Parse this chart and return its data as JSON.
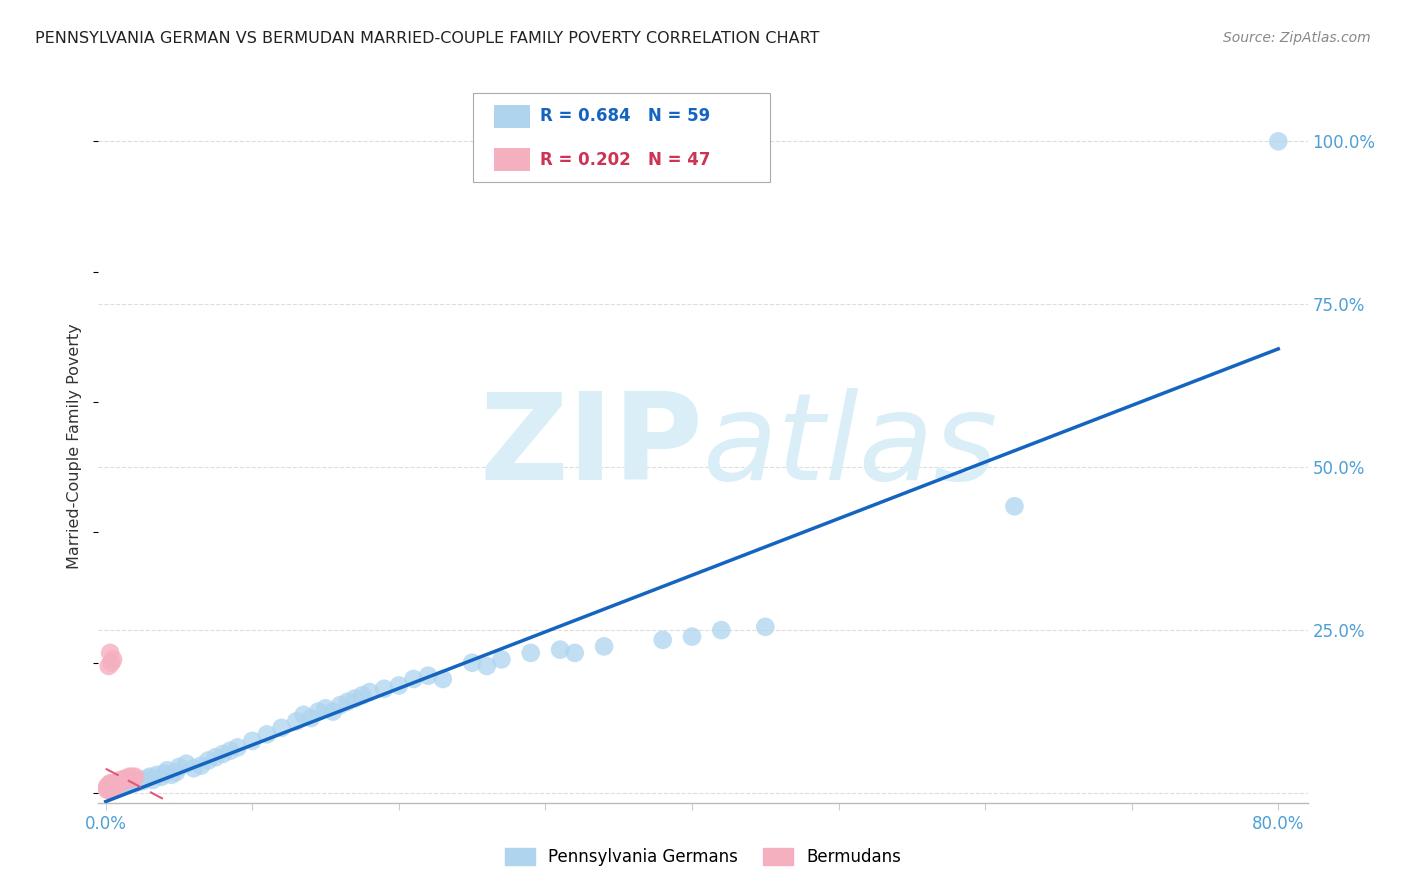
{
  "title": "PENNSYLVANIA GERMAN VS BERMUDAN MARRIED-COUPLE FAMILY POVERTY CORRELATION CHART",
  "source": "Source: ZipAtlas.com",
  "ylabel": "Married-Couple Family Poverty",
  "xlim": [
    -0.005,
    0.82
  ],
  "ylim": [
    -0.015,
    1.08
  ],
  "xticks": [
    0.0,
    0.1,
    0.2,
    0.3,
    0.4,
    0.5,
    0.6,
    0.7,
    0.8
  ],
  "xticklabels": [
    "0.0%",
    "",
    "",
    "",
    "",
    "",
    "",
    "",
    "80.0%"
  ],
  "ytick_positions": [
    0.0,
    0.25,
    0.5,
    0.75,
    1.0
  ],
  "yticklabels_right": [
    "",
    "25.0%",
    "50.0%",
    "75.0%",
    "100.0%"
  ],
  "blue_R": 0.684,
  "blue_N": 59,
  "pink_R": 0.202,
  "pink_N": 47,
  "blue_dot_color": "#aed4ee",
  "pink_dot_color": "#f5b0c0",
  "blue_line_color": "#1565c0",
  "pink_line_color": "#e05878",
  "watermark_color": "#daeef8",
  "legend_label_blue": "Pennsylvania Germans",
  "legend_label_pink": "Bermudans",
  "blue_x": [
    0.005,
    0.008,
    0.01,
    0.012,
    0.015,
    0.018,
    0.02,
    0.022,
    0.025,
    0.028,
    0.03,
    0.032,
    0.035,
    0.038,
    0.04,
    0.042,
    0.045,
    0.048,
    0.05,
    0.055,
    0.06,
    0.065,
    0.07,
    0.075,
    0.08,
    0.085,
    0.09,
    0.1,
    0.11,
    0.12,
    0.13,
    0.135,
    0.14,
    0.145,
    0.15,
    0.155,
    0.16,
    0.165,
    0.17,
    0.175,
    0.18,
    0.19,
    0.2,
    0.21,
    0.22,
    0.23,
    0.25,
    0.26,
    0.27,
    0.29,
    0.31,
    0.32,
    0.34,
    0.38,
    0.4,
    0.42,
    0.45,
    0.62,
    0.8
  ],
  "blue_y": [
    0.005,
    0.01,
    0.008,
    0.015,
    0.012,
    0.018,
    0.015,
    0.02,
    0.018,
    0.022,
    0.025,
    0.02,
    0.028,
    0.025,
    0.03,
    0.035,
    0.028,
    0.032,
    0.04,
    0.045,
    0.038,
    0.042,
    0.05,
    0.055,
    0.06,
    0.065,
    0.07,
    0.08,
    0.09,
    0.1,
    0.11,
    0.12,
    0.115,
    0.125,
    0.13,
    0.125,
    0.135,
    0.14,
    0.145,
    0.15,
    0.155,
    0.16,
    0.165,
    0.175,
    0.18,
    0.175,
    0.2,
    0.195,
    0.205,
    0.215,
    0.22,
    0.215,
    0.225,
    0.235,
    0.24,
    0.25,
    0.255,
    0.44,
    1.0
  ],
  "pink_x": [
    0.001,
    0.001,
    0.001,
    0.002,
    0.002,
    0.002,
    0.002,
    0.003,
    0.003,
    0.003,
    0.003,
    0.003,
    0.004,
    0.004,
    0.004,
    0.004,
    0.004,
    0.005,
    0.005,
    0.005,
    0.005,
    0.005,
    0.006,
    0.006,
    0.006,
    0.006,
    0.007,
    0.007,
    0.007,
    0.008,
    0.008,
    0.009,
    0.01,
    0.01,
    0.011,
    0.012,
    0.013,
    0.014,
    0.015,
    0.016,
    0.017,
    0.018,
    0.02,
    0.002,
    0.003,
    0.004,
    0.005
  ],
  "pink_y": [
    0.005,
    0.008,
    0.01,
    0.005,
    0.008,
    0.01,
    0.012,
    0.005,
    0.008,
    0.01,
    0.012,
    0.015,
    0.005,
    0.008,
    0.01,
    0.012,
    0.015,
    0.005,
    0.008,
    0.01,
    0.012,
    0.015,
    0.008,
    0.01,
    0.012,
    0.015,
    0.01,
    0.012,
    0.015,
    0.012,
    0.015,
    0.015,
    0.018,
    0.02,
    0.018,
    0.02,
    0.022,
    0.02,
    0.022,
    0.025,
    0.022,
    0.025,
    0.025,
    0.195,
    0.215,
    0.2,
    0.205
  ]
}
